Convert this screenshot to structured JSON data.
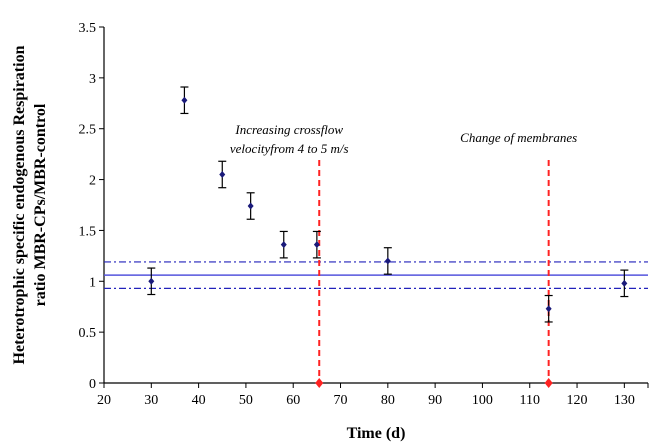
{
  "chart_data": {
    "type": "scatter",
    "xlabel": "Time (d)",
    "ylabel_line1": "Heterotrophic specific endogenous Respiration",
    "ylabel_line2": "ratio MBR-CPs/MBR-control",
    "xlim": [
      20,
      135
    ],
    "ylim": [
      0,
      3.5
    ],
    "xticks": [
      20,
      30,
      40,
      50,
      60,
      70,
      80,
      90,
      100,
      110,
      120,
      130
    ],
    "yticks": [
      0,
      0.5,
      1,
      1.5,
      2,
      2.5,
      3,
      3.5
    ],
    "ytick_labels": [
      "0",
      "0.5",
      "1",
      "1.5",
      "2",
      "2.5",
      "3",
      "3.5"
    ],
    "points": [
      {
        "x": 30,
        "y": 1.0,
        "err": 0.13
      },
      {
        "x": 37,
        "y": 2.78,
        "err": 0.13
      },
      {
        "x": 45,
        "y": 2.05,
        "err": 0.13
      },
      {
        "x": 51,
        "y": 1.74,
        "err": 0.13
      },
      {
        "x": 58,
        "y": 1.36,
        "err": 0.13
      },
      {
        "x": 65,
        "y": 1.36,
        "err": 0.13
      },
      {
        "x": 80,
        "y": 1.2,
        "err": 0.13
      },
      {
        "x": 114,
        "y": 0.73,
        "err": 0.13
      },
      {
        "x": 130,
        "y": 0.98,
        "err": 0.13
      }
    ],
    "mean_line": 1.06,
    "band_upper": 1.19,
    "band_lower": 0.93,
    "events": [
      {
        "x": 65.5,
        "label_line1": "Increasing crossflow",
        "label_line2": "velocityfrom 4 to 5 m/s"
      },
      {
        "x": 114,
        "label_line1": "Change of membranes",
        "label_line2": ""
      }
    ],
    "colors": {
      "points": "#1a1a7a",
      "mean_line": "#5555dd",
      "band": "#2222bb",
      "events": "#ff2222",
      "axis": "#000000"
    }
  }
}
